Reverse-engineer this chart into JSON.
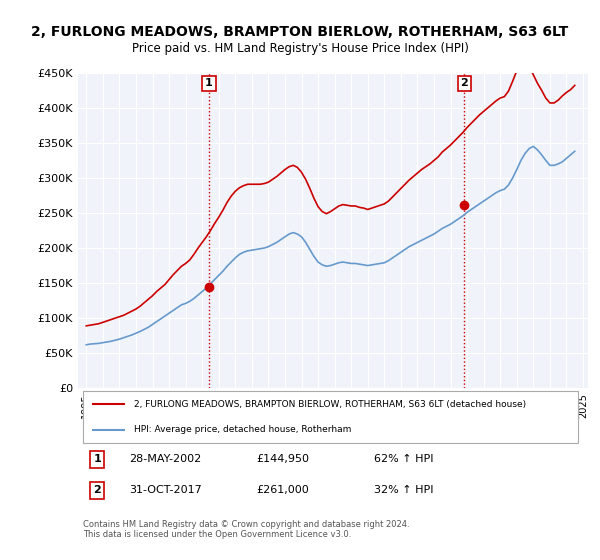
{
  "title": "2, FURLONG MEADOWS, BRAMPTON BIERLOW, ROTHERHAM, S63 6LT",
  "subtitle": "Price paid vs. HM Land Registry's House Price Index (HPI)",
  "hpi_color": "#6699cc",
  "price_color": "#cc0000",
  "marker_color": "#cc0000",
  "background_color": "#ffffff",
  "plot_bg_color": "#f0f4fa",
  "ylim": [
    0,
    450000
  ],
  "yticks": [
    0,
    50000,
    100000,
    150000,
    200000,
    250000,
    300000,
    350000,
    400000,
    450000
  ],
  "ytick_labels": [
    "£0",
    "£50K",
    "£100K",
    "£150K",
    "£200K",
    "£250K",
    "£300K",
    "£350K",
    "£400K",
    "£450K"
  ],
  "xtick_years": [
    1995,
    1996,
    1997,
    1998,
    1999,
    2000,
    2001,
    2002,
    2003,
    2004,
    2005,
    2006,
    2007,
    2008,
    2009,
    2010,
    2011,
    2012,
    2013,
    2014,
    2015,
    2016,
    2017,
    2018,
    2019,
    2020,
    2021,
    2022,
    2023,
    2024,
    2025
  ],
  "sale1": {
    "year": 2002.41,
    "price": 144950,
    "label": "1"
  },
  "sale2": {
    "year": 2017.83,
    "price": 261000,
    "label": "2"
  },
  "vline1_x": 2002.41,
  "vline2_x": 2017.83,
  "legend_line1": "2, FURLONG MEADOWS, BRAMPTON BIERLOW, ROTHERHAM, S63 6LT (detached house)",
  "legend_line2": "HPI: Average price, detached house, Rotherham",
  "table_data": [
    {
      "num": "1",
      "date": "28-MAY-2002",
      "price": "£144,950",
      "change": "62% ↑ HPI"
    },
    {
      "num": "2",
      "date": "31-OCT-2017",
      "price": "£261,000",
      "change": "32% ↑ HPI"
    }
  ],
  "footnote": "Contains HM Land Registry data © Crown copyright and database right 2024.\nThis data is licensed under the Open Government Licence v3.0.",
  "hpi_data_x": [
    1995.0,
    1995.25,
    1995.5,
    1995.75,
    1996.0,
    1996.25,
    1996.5,
    1996.75,
    1997.0,
    1997.25,
    1997.5,
    1997.75,
    1998.0,
    1998.25,
    1998.5,
    1998.75,
    1999.0,
    1999.25,
    1999.5,
    1999.75,
    2000.0,
    2000.25,
    2000.5,
    2000.75,
    2001.0,
    2001.25,
    2001.5,
    2001.75,
    2002.0,
    2002.25,
    2002.5,
    2002.75,
    2003.0,
    2003.25,
    2003.5,
    2003.75,
    2004.0,
    2004.25,
    2004.5,
    2004.75,
    2005.0,
    2005.25,
    2005.5,
    2005.75,
    2006.0,
    2006.25,
    2006.5,
    2006.75,
    2007.0,
    2007.25,
    2007.5,
    2007.75,
    2008.0,
    2008.25,
    2008.5,
    2008.75,
    2009.0,
    2009.25,
    2009.5,
    2009.75,
    2010.0,
    2010.25,
    2010.5,
    2010.75,
    2011.0,
    2011.25,
    2011.5,
    2011.75,
    2012.0,
    2012.25,
    2012.5,
    2012.75,
    2013.0,
    2013.25,
    2013.5,
    2013.75,
    2014.0,
    2014.25,
    2014.5,
    2014.75,
    2015.0,
    2015.25,
    2015.5,
    2015.75,
    2016.0,
    2016.25,
    2016.5,
    2016.75,
    2017.0,
    2017.25,
    2017.5,
    2017.75,
    2018.0,
    2018.25,
    2018.5,
    2018.75,
    2019.0,
    2019.25,
    2019.5,
    2019.75,
    2020.0,
    2020.25,
    2020.5,
    2020.75,
    2021.0,
    2021.25,
    2021.5,
    2021.75,
    2022.0,
    2022.25,
    2022.5,
    2022.75,
    2023.0,
    2023.25,
    2023.5,
    2023.75,
    2024.0,
    2024.25,
    2024.5
  ],
  "hpi_data_y": [
    62000,
    63000,
    63500,
    64000,
    65000,
    66000,
    67000,
    68500,
    70000,
    72000,
    74000,
    76000,
    78500,
    81000,
    84000,
    87000,
    91000,
    95000,
    99000,
    103000,
    107000,
    111000,
    115000,
    119000,
    121000,
    124000,
    128000,
    133000,
    138000,
    143000,
    149000,
    155000,
    161000,
    167000,
    174000,
    180000,
    186000,
    191000,
    194000,
    196000,
    197000,
    198000,
    199000,
    200000,
    202000,
    205000,
    208000,
    212000,
    216000,
    220000,
    222000,
    220000,
    216000,
    208000,
    198000,
    188000,
    180000,
    176000,
    174000,
    175000,
    177000,
    179000,
    180000,
    179000,
    178000,
    178000,
    177000,
    176000,
    175000,
    176000,
    177000,
    178000,
    179000,
    182000,
    186000,
    190000,
    194000,
    198000,
    202000,
    205000,
    208000,
    211000,
    214000,
    217000,
    220000,
    224000,
    228000,
    231000,
    234000,
    238000,
    242000,
    246000,
    251000,
    255000,
    259000,
    263000,
    267000,
    271000,
    275000,
    279000,
    282000,
    284000,
    290000,
    300000,
    312000,
    325000,
    335000,
    342000,
    345000,
    340000,
    333000,
    325000,
    318000,
    318000,
    320000,
    323000,
    328000,
    333000,
    338000
  ],
  "price_data_x": [
    1995.0,
    1995.25,
    1995.5,
    1995.75,
    1996.0,
    1996.25,
    1996.5,
    1996.75,
    1997.0,
    1997.25,
    1997.5,
    1997.75,
    1998.0,
    1998.25,
    1998.5,
    1998.75,
    1999.0,
    1999.25,
    1999.5,
    1999.75,
    2000.0,
    2000.25,
    2000.5,
    2000.75,
    2001.0,
    2001.25,
    2001.5,
    2001.75,
    2002.0,
    2002.25,
    2002.5,
    2002.75,
    2003.0,
    2003.25,
    2003.5,
    2003.75,
    2004.0,
    2004.25,
    2004.5,
    2004.75,
    2005.0,
    2005.25,
    2005.5,
    2005.75,
    2006.0,
    2006.25,
    2006.5,
    2006.75,
    2007.0,
    2007.25,
    2007.5,
    2007.75,
    2008.0,
    2008.25,
    2008.5,
    2008.75,
    2009.0,
    2009.25,
    2009.5,
    2009.75,
    2010.0,
    2010.25,
    2010.5,
    2010.75,
    2011.0,
    2011.25,
    2011.5,
    2011.75,
    2012.0,
    2012.25,
    2012.5,
    2012.75,
    2013.0,
    2013.25,
    2013.5,
    2013.75,
    2014.0,
    2014.25,
    2014.5,
    2014.75,
    2015.0,
    2015.25,
    2015.5,
    2015.75,
    2016.0,
    2016.25,
    2016.5,
    2016.75,
    2017.0,
    2017.25,
    2017.5,
    2017.75,
    2018.0,
    2018.25,
    2018.5,
    2018.75,
    2019.0,
    2019.25,
    2019.5,
    2019.75,
    2020.0,
    2020.25,
    2020.5,
    2020.75,
    2021.0,
    2021.25,
    2021.5,
    2021.75,
    2022.0,
    2022.25,
    2022.5,
    2022.75,
    2023.0,
    2023.25,
    2023.5,
    2023.75,
    2024.0,
    2024.25,
    2024.5
  ],
  "price_data_y": [
    89000,
    90000,
    91000,
    92000,
    94000,
    96000,
    98000,
    100000,
    102000,
    104000,
    107000,
    110000,
    113000,
    117000,
    122000,
    127000,
    132000,
    138000,
    143000,
    148000,
    155000,
    162000,
    168000,
    174000,
    178000,
    183000,
    191000,
    200000,
    208000,
    216000,
    225000,
    235000,
    244000,
    254000,
    265000,
    274000,
    281000,
    286000,
    289000,
    291000,
    291000,
    291000,
    291000,
    292000,
    294000,
    298000,
    302000,
    307000,
    312000,
    316000,
    318000,
    315000,
    308000,
    298000,
    285000,
    271000,
    259000,
    252000,
    249000,
    252000,
    256000,
    260000,
    262000,
    261000,
    260000,
    260000,
    258000,
    257000,
    255000,
    257000,
    259000,
    261000,
    263000,
    267000,
    273000,
    279000,
    285000,
    291000,
    297000,
    302000,
    307000,
    312000,
    316000,
    320000,
    325000,
    330000,
    337000,
    342000,
    347000,
    353000,
    359000,
    365000,
    372000,
    378000,
    384000,
    390000,
    395000,
    400000,
    405000,
    410000,
    414000,
    416000,
    424000,
    438000,
    453000,
    464000,
    467000,
    459000,
    447000,
    435000,
    425000,
    414000,
    407000,
    407000,
    411000,
    417000,
    422000,
    426000,
    432000
  ]
}
